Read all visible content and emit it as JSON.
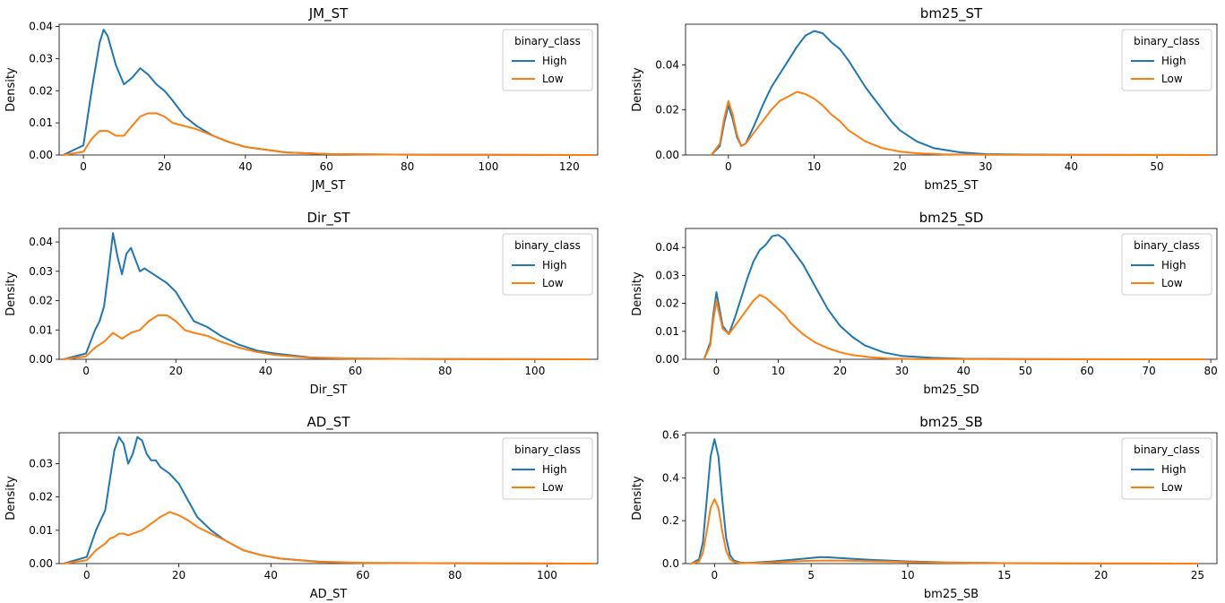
{
  "colors": {
    "High": "#1f77b4",
    "Low": "#ff7f0e"
  },
  "chart_data": [
    {
      "type": "line",
      "title": "JM_ST",
      "xlabel": "JM_ST",
      "ylabel": "Density",
      "xlim": [
        -6,
        127
      ],
      "ylim": [
        0,
        0.0407
      ],
      "xticks": [
        "0",
        "20",
        "40",
        "60",
        "80",
        "100",
        "120"
      ],
      "yticks": [
        "0.00",
        "0.01",
        "0.02",
        "0.03",
        "0.04"
      ],
      "legend_title": "binary_class",
      "legend_position": "top-right",
      "series": [
        {
          "name": "High",
          "x": [
            -5,
            0,
            2,
            4,
            5,
            6,
            8,
            10,
            12,
            14,
            16,
            18,
            20,
            22,
            25,
            28,
            32,
            36,
            40,
            50,
            60,
            80,
            100,
            126
          ],
          "y": [
            0,
            0.003,
            0.02,
            0.035,
            0.039,
            0.037,
            0.028,
            0.022,
            0.024,
            0.027,
            0.025,
            0.022,
            0.02,
            0.017,
            0.012,
            0.009,
            0.006,
            0.004,
            0.0025,
            0.0008,
            0.0003,
            0.0001,
            5e-05,
            0
          ]
        },
        {
          "name": "Low",
          "x": [
            -5,
            0,
            2,
            4,
            6,
            8,
            10,
            12,
            14,
            16,
            18,
            20,
            22,
            25,
            28,
            32,
            36,
            40,
            50,
            60,
            80,
            100,
            126
          ],
          "y": [
            0,
            0.001,
            0.005,
            0.0075,
            0.0075,
            0.006,
            0.006,
            0.009,
            0.012,
            0.013,
            0.013,
            0.012,
            0.01,
            0.009,
            0.008,
            0.006,
            0.004,
            0.0025,
            0.0008,
            0.0003,
            0.0001,
            5e-05,
            0
          ]
        }
      ]
    },
    {
      "type": "line",
      "title": "bm25_ST",
      "xlabel": "bm25_ST",
      "ylabel": "Density",
      "xlim": [
        -5,
        57
      ],
      "ylim": [
        0,
        0.058
      ],
      "xticks": [
        "0",
        "10",
        "20",
        "30",
        "40",
        "50"
      ],
      "yticks": [
        "0.00",
        "0.02",
        "0.04"
      ],
      "legend_title": "binary_class",
      "legend_position": "top-right",
      "series": [
        {
          "name": "High",
          "x": [
            -2,
            -1,
            -0.5,
            0,
            0.5,
            1,
            1.5,
            2,
            3,
            4,
            5,
            6,
            7,
            8,
            9,
            10,
            11,
            12,
            13,
            14,
            15,
            16,
            17,
            18,
            19,
            20,
            22,
            24,
            27,
            30,
            35,
            40,
            50,
            56
          ],
          "y": [
            0,
            0.004,
            0.014,
            0.022,
            0.016,
            0.008,
            0.004,
            0.005,
            0.013,
            0.022,
            0.03,
            0.036,
            0.042,
            0.048,
            0.053,
            0.055,
            0.054,
            0.05,
            0.047,
            0.042,
            0.036,
            0.03,
            0.025,
            0.02,
            0.015,
            0.011,
            0.006,
            0.003,
            0.0012,
            0.0004,
            0.0002,
            0.0001,
            3e-05,
            0
          ]
        },
        {
          "name": "Low",
          "x": [
            -2,
            -1,
            -0.5,
            0,
            0.5,
            1,
            1.5,
            2,
            3,
            4,
            5,
            6,
            7,
            8,
            9,
            10,
            11,
            12,
            13,
            14,
            16,
            18,
            20,
            22,
            25,
            30,
            35,
            40,
            50,
            56
          ],
          "y": [
            0,
            0.005,
            0.016,
            0.024,
            0.018,
            0.009,
            0.004,
            0.005,
            0.01,
            0.015,
            0.02,
            0.024,
            0.026,
            0.028,
            0.027,
            0.025,
            0.022,
            0.018,
            0.015,
            0.011,
            0.006,
            0.003,
            0.0015,
            0.0008,
            0.0003,
            0.0001,
            5e-05,
            2e-05,
            1e-05,
            0
          ]
        }
      ]
    },
    {
      "type": "line",
      "title": "Dir_ST",
      "xlabel": "Dir_ST",
      "ylabel": "Density",
      "xlim": [
        -6,
        114
      ],
      "ylim": [
        0,
        0.0446
      ],
      "xticks": [
        "0",
        "20",
        "40",
        "60",
        "80",
        "100"
      ],
      "yticks": [
        "0.00",
        "0.01",
        "0.02",
        "0.03",
        "0.04"
      ],
      "legend_title": "binary_class",
      "legend_position": "top-right",
      "series": [
        {
          "name": "High",
          "x": [
            -5,
            0,
            2,
            3,
            4,
            5,
            6,
            7,
            8,
            9,
            10,
            11,
            12,
            13,
            14,
            16,
            18,
            20,
            22,
            24,
            27,
            30,
            34,
            38,
            42,
            50,
            60,
            80,
            100,
            112
          ],
          "y": [
            0,
            0.002,
            0.01,
            0.013,
            0.018,
            0.03,
            0.043,
            0.035,
            0.029,
            0.036,
            0.038,
            0.034,
            0.03,
            0.031,
            0.03,
            0.028,
            0.026,
            0.023,
            0.018,
            0.013,
            0.011,
            0.008,
            0.005,
            0.003,
            0.002,
            0.0006,
            0.0002,
            0.0001,
            4e-05,
            0
          ]
        },
        {
          "name": "Low",
          "x": [
            -5,
            0,
            2,
            4,
            6,
            8,
            10,
            12,
            14,
            16,
            18,
            20,
            22,
            24,
            27,
            30,
            34,
            38,
            42,
            50,
            60,
            80,
            100,
            112
          ],
          "y": [
            0,
            0.001,
            0.004,
            0.006,
            0.009,
            0.007,
            0.009,
            0.01,
            0.013,
            0.015,
            0.015,
            0.013,
            0.01,
            0.009,
            0.008,
            0.006,
            0.004,
            0.0025,
            0.0015,
            0.0005,
            0.0002,
            0.0001,
            4e-05,
            0
          ]
        }
      ]
    },
    {
      "type": "line",
      "title": "bm25_SD",
      "xlabel": "bm25_SD",
      "ylabel": "Density",
      "xlim": [
        -5,
        81
      ],
      "ylim": [
        0,
        0.0468
      ],
      "xticks": [
        "0",
        "10",
        "20",
        "30",
        "40",
        "50",
        "60",
        "70",
        "80"
      ],
      "yticks": [
        "0.00",
        "0.01",
        "0.02",
        "0.03",
        "0.04"
      ],
      "legend_title": "binary_class",
      "legend_position": "top-right",
      "series": [
        {
          "name": "High",
          "x": [
            -2,
            -1,
            -0.5,
            0,
            0.5,
            1,
            2,
            3,
            4,
            5,
            6,
            7,
            8,
            9,
            10,
            11,
            12,
            13,
            14,
            15,
            16,
            17,
            18,
            20,
            22,
            24,
            27,
            30,
            35,
            40,
            50,
            60,
            79
          ],
          "y": [
            0,
            0.006,
            0.016,
            0.024,
            0.018,
            0.012,
            0.009,
            0.015,
            0.022,
            0.029,
            0.035,
            0.039,
            0.041,
            0.044,
            0.0445,
            0.043,
            0.04,
            0.037,
            0.034,
            0.03,
            0.026,
            0.022,
            0.018,
            0.012,
            0.008,
            0.005,
            0.0025,
            0.0012,
            0.0005,
            0.0002,
            0.0001,
            4e-05,
            0
          ]
        },
        {
          "name": "Low",
          "x": [
            -2,
            -1,
            -0.5,
            0,
            0.5,
            1,
            2,
            3,
            4,
            5,
            6,
            7,
            8,
            9,
            10,
            11,
            12,
            13,
            14,
            16,
            18,
            20,
            22,
            25,
            28,
            32,
            40,
            50,
            60,
            79
          ],
          "y": [
            0,
            0.005,
            0.014,
            0.021,
            0.016,
            0.011,
            0.009,
            0.012,
            0.015,
            0.018,
            0.021,
            0.023,
            0.022,
            0.02,
            0.018,
            0.016,
            0.013,
            0.011,
            0.009,
            0.006,
            0.004,
            0.0025,
            0.0015,
            0.0007,
            0.0003,
            0.0001,
            5e-05,
            2e-05,
            1e-05,
            0
          ]
        }
      ]
    },
    {
      "type": "line",
      "title": "AD_ST",
      "xlabel": "AD_ST",
      "ylabel": "Density",
      "xlim": [
        -6,
        111
      ],
      "ylim": [
        0,
        0.0393
      ],
      "xticks": [
        "0",
        "20",
        "40",
        "60",
        "80",
        "100"
      ],
      "yticks": [
        "0.00",
        "0.01",
        "0.02",
        "0.03"
      ],
      "legend_title": "binary_class",
      "legend_position": "top-right",
      "series": [
        {
          "name": "High",
          "x": [
            -5,
            0,
            2,
            3,
            4,
            5,
            6,
            7,
            8,
            9,
            10,
            11,
            12,
            13,
            14,
            15,
            16,
            18,
            20,
            22,
            24,
            27,
            30,
            34,
            38,
            42,
            50,
            60,
            80,
            100,
            110
          ],
          "y": [
            0,
            0.002,
            0.01,
            0.013,
            0.016,
            0.025,
            0.034,
            0.038,
            0.036,
            0.03,
            0.033,
            0.038,
            0.037,
            0.033,
            0.031,
            0.031,
            0.029,
            0.027,
            0.024,
            0.019,
            0.014,
            0.01,
            0.007,
            0.004,
            0.0025,
            0.0015,
            0.0006,
            0.0002,
            0.0001,
            4e-05,
            0
          ]
        },
        {
          "name": "Low",
          "x": [
            -5,
            0,
            2,
            4,
            5,
            6,
            7,
            8,
            9,
            10,
            12,
            14,
            16,
            18,
            20,
            22,
            24,
            27,
            30,
            34,
            38,
            42,
            50,
            60,
            80,
            100,
            110
          ],
          "y": [
            0,
            0.001,
            0.004,
            0.006,
            0.0075,
            0.008,
            0.009,
            0.009,
            0.0085,
            0.009,
            0.01,
            0.012,
            0.014,
            0.0155,
            0.0145,
            0.013,
            0.011,
            0.009,
            0.007,
            0.004,
            0.0025,
            0.0015,
            0.0005,
            0.0002,
            0.0001,
            4e-05,
            0
          ]
        }
      ]
    },
    {
      "type": "line",
      "title": "bm25_SB",
      "xlabel": "bm25_SB",
      "ylabel": "Density",
      "xlim": [
        -1.5,
        26
      ],
      "ylim": [
        0,
        0.61
      ],
      "xticks": [
        "0",
        "5",
        "10",
        "15",
        "20",
        "25"
      ],
      "yticks": [
        "0.0",
        "0.2",
        "0.4",
        "0.6"
      ],
      "legend_title": "binary_class",
      "legend_position": "top-right",
      "series": [
        {
          "name": "High",
          "x": [
            -1.2,
            -0.8,
            -0.6,
            -0.4,
            -0.2,
            0,
            0.2,
            0.4,
            0.6,
            0.8,
            1,
            1.3,
            1.6,
            2,
            3,
            4,
            5,
            5.5,
            6,
            7,
            8,
            9,
            10,
            12,
            15,
            18,
            20,
            22,
            24,
            25
          ],
          "y": [
            0,
            0.02,
            0.1,
            0.3,
            0.5,
            0.58,
            0.5,
            0.3,
            0.12,
            0.04,
            0.015,
            0.005,
            0.003,
            0.004,
            0.01,
            0.018,
            0.026,
            0.03,
            0.029,
            0.023,
            0.018,
            0.014,
            0.01,
            0.005,
            0.002,
            0.001,
            0.0005,
            0.0003,
            0.0001,
            0
          ]
        },
        {
          "name": "Low",
          "x": [
            -1.2,
            -0.8,
            -0.6,
            -0.4,
            -0.2,
            0,
            0.2,
            0.4,
            0.6,
            0.8,
            1,
            1.3,
            1.6,
            2,
            3,
            4,
            5,
            6,
            7,
            8,
            9,
            10,
            12,
            15,
            18,
            20,
            22,
            24,
            25
          ],
          "y": [
            0,
            0.01,
            0.05,
            0.15,
            0.26,
            0.3,
            0.26,
            0.15,
            0.06,
            0.02,
            0.008,
            0.003,
            0.002,
            0.002,
            0.006,
            0.01,
            0.013,
            0.014,
            0.013,
            0.011,
            0.009,
            0.007,
            0.004,
            0.002,
            0.001,
            0.0006,
            0.0003,
            0.0001,
            0
          ]
        }
      ]
    }
  ]
}
